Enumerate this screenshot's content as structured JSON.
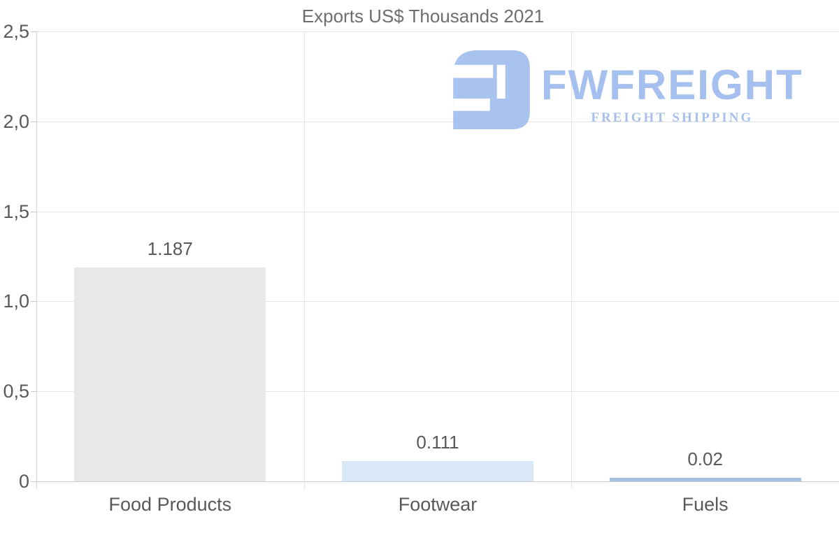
{
  "title": "Exports US$ Thousands 2021",
  "watermark": {
    "name": "FWFREIGHT",
    "tagline": "FREIGHT SHIPPING",
    "color": "#a5c0ee"
  },
  "chart_data": {
    "type": "bar",
    "title": "Exports US$ Thousands 2021",
    "categories": [
      "Food Products",
      "Footwear",
      "Fuels"
    ],
    "values": [
      1.187,
      0.111,
      0.02
    ],
    "value_labels": [
      "1.187",
      "0.111",
      "0.02"
    ],
    "bar_colors": [
      "#e8e8e8",
      "#d9e8f9",
      "#a3c2e4"
    ],
    "xlabel": "",
    "ylabel": "",
    "ylim": [
      0,
      2.5
    ],
    "y_ticks": [
      {
        "label": "0",
        "value": 0
      },
      {
        "label": "0,5",
        "value": 0.5
      },
      {
        "label": "1,0",
        "value": 1.0
      },
      {
        "label": "1,5",
        "value": 1.5
      },
      {
        "label": "2,0",
        "value": 2.0
      },
      {
        "label": "2,5",
        "value": 2.5
      }
    ],
    "grid": true,
    "legend": "none",
    "value_labels_position": "above-bars",
    "decimal_style_axis": "comma",
    "decimal_style_labels": "dot"
  },
  "colors": {
    "title_text": "#6e6e6e",
    "axis_text": "#595959",
    "gridline": "#e4e4e4",
    "baseline": "#c8c8c8",
    "background": "#ffffff",
    "logo_blue": "#a5c0ee"
  }
}
